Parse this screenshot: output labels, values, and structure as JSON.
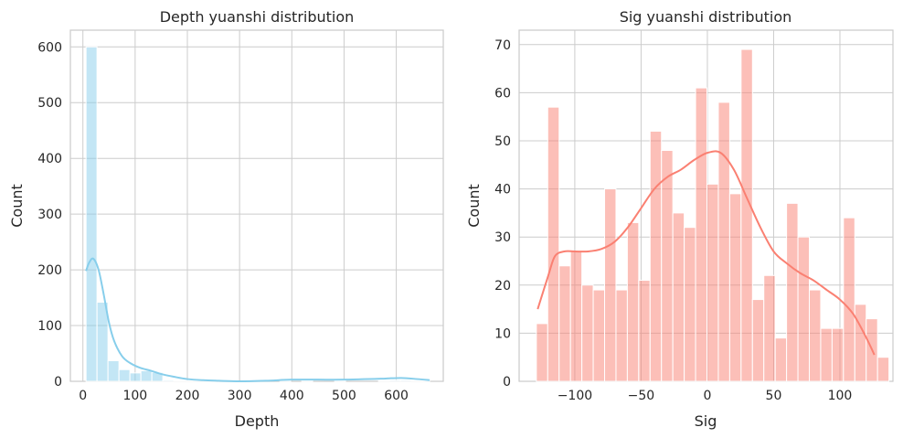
{
  "chart_data": [
    {
      "type": "bar",
      "subtype": "histogram-with-kde",
      "title": "Depth yuanshi distribution",
      "xlabel": "Depth",
      "ylabel": "Count",
      "xlim": [
        -24,
        690
      ],
      "ylim": [
        0,
        630
      ],
      "xticks": [
        0,
        100,
        200,
        300,
        400,
        500,
        600
      ],
      "yticks": [
        0,
        100,
        200,
        300,
        400,
        500,
        600
      ],
      "grid": true,
      "bar_color": "#87ceeb",
      "kde_color": "#87ceeb",
      "bins": [
        {
          "x0": 6,
          "x1": 27,
          "count": 600
        },
        {
          "x0": 27,
          "x1": 48,
          "count": 142
        },
        {
          "x0": 48,
          "x1": 69,
          "count": 37
        },
        {
          "x0": 69,
          "x1": 90,
          "count": 21
        },
        {
          "x0": 90,
          "x1": 111,
          "count": 15
        },
        {
          "x0": 111,
          "x1": 132,
          "count": 19
        },
        {
          "x0": 132,
          "x1": 153,
          "count": 16
        },
        {
          "x0": 153,
          "x1": 174,
          "count": 2
        },
        {
          "x0": 174,
          "x1": 195,
          "count": 1
        },
        {
          "x0": 195,
          "x1": 216,
          "count": 1
        },
        {
          "x0": 216,
          "x1": 237,
          "count": 1
        },
        {
          "x0": 237,
          "x1": 258,
          "count": 1
        },
        {
          "x0": 258,
          "x1": 279,
          "count": 1
        },
        {
          "x0": 377,
          "x1": 398,
          "count": 1
        },
        {
          "x0": 419,
          "x1": 440,
          "count": 1
        },
        {
          "x0": 482,
          "x1": 503,
          "count": 1
        },
        {
          "x0": 566,
          "x1": 587,
          "count": 1
        },
        {
          "x0": 587,
          "x1": 608,
          "count": 2
        },
        {
          "x0": 608,
          "x1": 629,
          "count": 2
        },
        {
          "x0": 629,
          "x1": 650,
          "count": 1
        },
        {
          "x0": 650,
          "x1": 664,
          "count": 1
        }
      ],
      "kde": {
        "x": [
          6,
          12,
          20,
          30,
          40,
          50,
          60,
          75,
          90,
          110,
          130,
          150,
          175,
          200,
          230,
          260,
          300,
          350,
          400,
          450,
          500,
          550,
          580,
          610,
          640,
          664
        ],
        "y": [
          198,
          213,
          220,
          200,
          155,
          105,
          72,
          45,
          33,
          24,
          19,
          13,
          8,
          4,
          2,
          1,
          0,
          1,
          3,
          3,
          3,
          4,
          5,
          6,
          4,
          2
        ]
      }
    },
    {
      "type": "bar",
      "subtype": "histogram-with-kde",
      "title": "Sig yuanshi distribution",
      "xlabel": "Sig",
      "ylabel": "Count",
      "xlim": [
        -142,
        140
      ],
      "ylim": [
        0,
        73
      ],
      "xticks": [
        -100,
        -50,
        0,
        50,
        100
      ],
      "xtick_labels": [
        "−100",
        "−50",
        "0",
        "50",
        "100"
      ],
      "yticks": [
        0,
        10,
        20,
        30,
        40,
        50,
        60,
        70
      ],
      "grid": true,
      "bar_color": "#fa8072",
      "kde_color": "#fa8072",
      "bin_start": -129,
      "bin_width": 8.58,
      "counts": [
        12,
        57,
        24,
        27,
        20,
        19,
        40,
        19,
        33,
        21,
        52,
        48,
        35,
        32,
        61,
        41,
        58,
        39,
        69,
        17,
        22,
        9,
        37,
        30,
        19,
        11,
        11,
        34,
        16,
        13,
        5
      ],
      "kde": {
        "x": [
          -128,
          -120,
          -115,
          -108,
          -100,
          -90,
          -80,
          -70,
          -60,
          -50,
          -40,
          -30,
          -20,
          -10,
          0,
          10,
          20,
          30,
          40,
          50,
          60,
          70,
          80,
          90,
          100,
          110,
          120,
          126
        ],
        "y": [
          15,
          22,
          26,
          27,
          27,
          27,
          27.5,
          29,
          32,
          36,
          40,
          42.5,
          44,
          46,
          47.5,
          47.5,
          44,
          38,
          32,
          27,
          24.5,
          22.5,
          21,
          19,
          17,
          14,
          9,
          5.5
        ]
      }
    }
  ]
}
